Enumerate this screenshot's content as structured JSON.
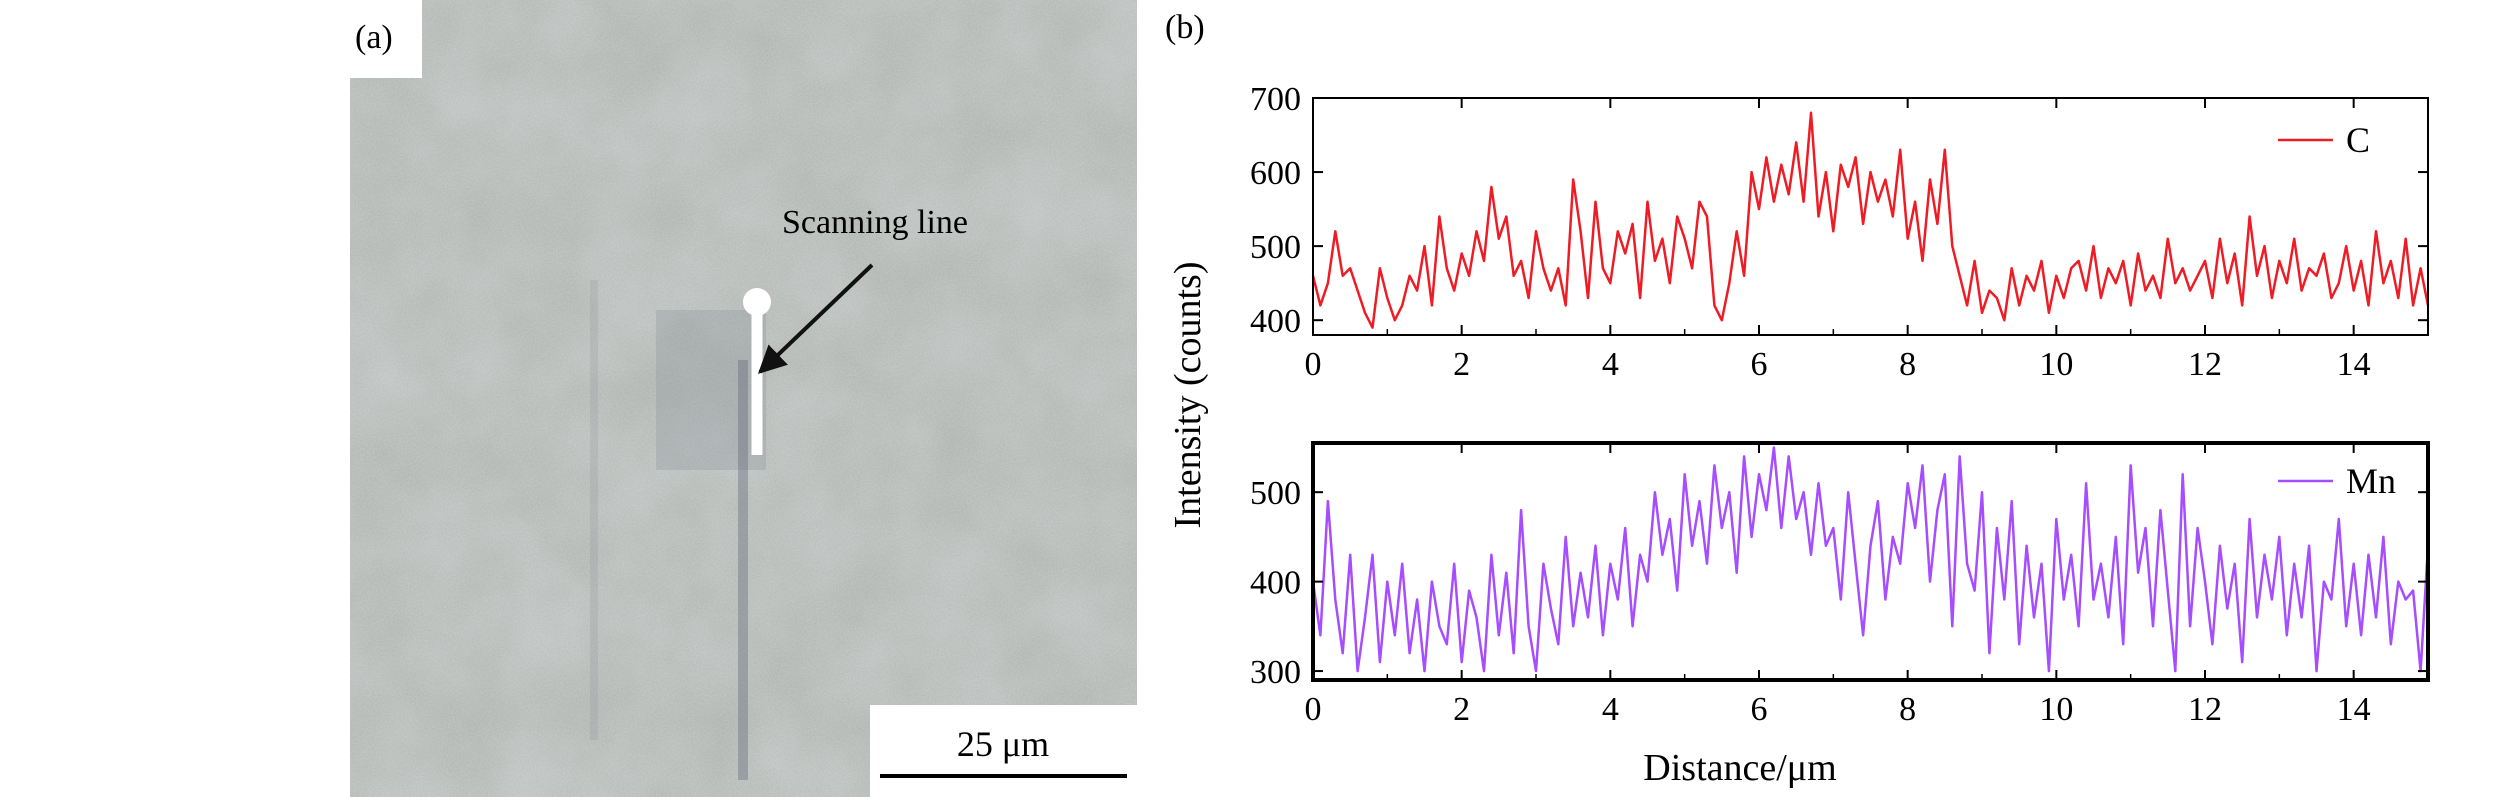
{
  "panel_a": {
    "label": "(a)",
    "annotation": "Scanning line",
    "scale_bar": "25 μm",
    "colors": {
      "background": "#a9aeaa",
      "scan_line": "#ffffff",
      "arrow": "#111111"
    }
  },
  "panel_b": {
    "label": "(b)"
  },
  "chart_data": [
    {
      "type": "line",
      "title": "",
      "xlabel": "",
      "ylabel": "Intensity (counts)",
      "xlim": [
        0,
        15
      ],
      "ylim": [
        380,
        700
      ],
      "x_ticks": [
        0,
        2,
        4,
        6,
        8,
        10,
        12,
        14
      ],
      "y_ticks": [
        400,
        500,
        600,
        700
      ],
      "grid": false,
      "legend_position": "top-right",
      "series": [
        {
          "name": "C",
          "color": "#ee1c25",
          "x": [
            0,
            0.1,
            0.2,
            0.3,
            0.4,
            0.5,
            0.6,
            0.7,
            0.8,
            0.9,
            1.0,
            1.1,
            1.2,
            1.3,
            1.4,
            1.5,
            1.6,
            1.7,
            1.8,
            1.9,
            2.0,
            2.1,
            2.2,
            2.3,
            2.4,
            2.5,
            2.6,
            2.7,
            2.8,
            2.9,
            3.0,
            3.1,
            3.2,
            3.3,
            3.4,
            3.5,
            3.6,
            3.7,
            3.8,
            3.9,
            4.0,
            4.1,
            4.2,
            4.3,
            4.4,
            4.5,
            4.6,
            4.7,
            4.8,
            4.9,
            5.0,
            5.1,
            5.2,
            5.3,
            5.4,
            5.5,
            5.6,
            5.7,
            5.8,
            5.9,
            6.0,
            6.1,
            6.2,
            6.3,
            6.4,
            6.5,
            6.6,
            6.7,
            6.8,
            6.9,
            7.0,
            7.1,
            7.2,
            7.3,
            7.4,
            7.5,
            7.6,
            7.7,
            7.8,
            7.9,
            8.0,
            8.1,
            8.2,
            8.3,
            8.4,
            8.5,
            8.6,
            8.7,
            8.8,
            8.9,
            9.0,
            9.1,
            9.2,
            9.3,
            9.4,
            9.5,
            9.6,
            9.7,
            9.8,
            9.9,
            10.0,
            10.1,
            10.2,
            10.3,
            10.4,
            10.5,
            10.6,
            10.7,
            10.8,
            10.9,
            11.0,
            11.1,
            11.2,
            11.3,
            11.4,
            11.5,
            11.6,
            11.7,
            11.8,
            11.9,
            12.0,
            12.1,
            12.2,
            12.3,
            12.4,
            12.5,
            12.6,
            12.7,
            12.8,
            12.9,
            13.0,
            13.1,
            13.2,
            13.3,
            13.4,
            13.5,
            13.6,
            13.7,
            13.8,
            13.9,
            14.0,
            14.1,
            14.2,
            14.3,
            14.4,
            14.5,
            14.6,
            14.7,
            14.8,
            14.9,
            15.0
          ],
          "values": [
            460,
            420,
            450,
            520,
            460,
            470,
            440,
            410,
            390,
            470,
            430,
            400,
            420,
            460,
            440,
            500,
            420,
            540,
            470,
            440,
            490,
            460,
            520,
            480,
            580,
            510,
            540,
            460,
            480,
            430,
            520,
            470,
            440,
            470,
            420,
            590,
            520,
            430,
            560,
            470,
            450,
            520,
            490,
            530,
            430,
            560,
            480,
            510,
            450,
            540,
            510,
            470,
            560,
            540,
            420,
            400,
            450,
            520,
            460,
            600,
            550,
            620,
            560,
            610,
            570,
            640,
            560,
            680,
            540,
            600,
            520,
            610,
            580,
            620,
            530,
            600,
            560,
            590,
            540,
            630,
            510,
            560,
            480,
            590,
            530,
            630,
            500,
            460,
            420,
            480,
            410,
            440,
            430,
            400,
            470,
            420,
            460,
            440,
            480,
            410,
            460,
            430,
            470,
            480,
            440,
            500,
            430,
            470,
            450,
            480,
            420,
            490,
            440,
            460,
            430,
            510,
            450,
            470,
            440,
            460,
            480,
            430,
            510,
            450,
            490,
            420,
            540,
            460,
            500,
            430,
            480,
            450,
            510,
            440,
            470,
            460,
            490,
            430,
            450,
            500,
            440,
            480,
            420,
            520,
            450,
            480,
            430,
            510,
            420,
            470,
            420
          ]
        }
      ]
    },
    {
      "type": "line",
      "title": "",
      "xlabel": "Distance/μm",
      "ylabel": "",
      "xlim": [
        0,
        15
      ],
      "ylim": [
        290,
        555
      ],
      "x_ticks": [
        0,
        2,
        4,
        6,
        8,
        10,
        12,
        14
      ],
      "y_ticks": [
        300,
        400,
        500
      ],
      "grid": false,
      "legend_position": "top-right",
      "series": [
        {
          "name": "Mn",
          "color": "#a64dff",
          "x": [
            0,
            0.1,
            0.2,
            0.3,
            0.4,
            0.5,
            0.6,
            0.7,
            0.8,
            0.9,
            1.0,
            1.1,
            1.2,
            1.3,
            1.4,
            1.5,
            1.6,
            1.7,
            1.8,
            1.9,
            2.0,
            2.1,
            2.2,
            2.3,
            2.4,
            2.5,
            2.6,
            2.7,
            2.8,
            2.9,
            3.0,
            3.1,
            3.2,
            3.3,
            3.4,
            3.5,
            3.6,
            3.7,
            3.8,
            3.9,
            4.0,
            4.1,
            4.2,
            4.3,
            4.4,
            4.5,
            4.6,
            4.7,
            4.8,
            4.9,
            5.0,
            5.1,
            5.2,
            5.3,
            5.4,
            5.5,
            5.6,
            5.7,
            5.8,
            5.9,
            6.0,
            6.1,
            6.2,
            6.3,
            6.4,
            6.5,
            6.6,
            6.7,
            6.8,
            6.9,
            7.0,
            7.1,
            7.2,
            7.3,
            7.4,
            7.5,
            7.6,
            7.7,
            7.8,
            7.9,
            8.0,
            8.1,
            8.2,
            8.3,
            8.4,
            8.5,
            8.6,
            8.7,
            8.8,
            8.9,
            9.0,
            9.1,
            9.2,
            9.3,
            9.4,
            9.5,
            9.6,
            9.7,
            9.8,
            9.9,
            10.0,
            10.1,
            10.2,
            10.3,
            10.4,
            10.5,
            10.6,
            10.7,
            10.8,
            10.9,
            11.0,
            11.1,
            11.2,
            11.3,
            11.4,
            11.5,
            11.6,
            11.7,
            11.8,
            11.9,
            12.0,
            12.1,
            12.2,
            12.3,
            12.4,
            12.5,
            12.6,
            12.7,
            12.8,
            12.9,
            13.0,
            13.1,
            13.2,
            13.3,
            13.4,
            13.5,
            13.6,
            13.7,
            13.8,
            13.9,
            14.0,
            14.1,
            14.2,
            14.3,
            14.4,
            14.5,
            14.6,
            14.7,
            14.8,
            14.9,
            15.0
          ],
          "values": [
            400,
            340,
            490,
            380,
            320,
            430,
            300,
            360,
            430,
            310,
            400,
            340,
            420,
            320,
            380,
            300,
            400,
            350,
            330,
            420,
            310,
            390,
            360,
            300,
            430,
            340,
            410,
            320,
            480,
            350,
            300,
            420,
            370,
            330,
            450,
            350,
            410,
            360,
            440,
            340,
            420,
            380,
            460,
            350,
            430,
            400,
            500,
            430,
            470,
            390,
            520,
            440,
            490,
            420,
            530,
            460,
            500,
            410,
            540,
            450,
            520,
            480,
            550,
            460,
            540,
            470,
            500,
            430,
            510,
            440,
            460,
            380,
            500,
            420,
            340,
            440,
            490,
            380,
            450,
            420,
            510,
            460,
            530,
            400,
            480,
            520,
            350,
            540,
            420,
            390,
            500,
            320,
            460,
            380,
            490,
            330,
            440,
            360,
            420,
            300,
            470,
            380,
            430,
            350,
            510,
            380,
            420,
            360,
            450,
            330,
            530,
            410,
            460,
            350,
            480,
            390,
            300,
            520,
            350,
            460,
            400,
            330,
            440,
            370,
            420,
            310,
            470,
            360,
            430,
            380,
            450,
            340,
            420,
            360,
            440,
            300,
            400,
            380,
            470,
            350,
            420,
            340,
            430,
            360,
            450,
            330,
            400,
            380,
            390,
            300,
            440
          ]
        }
      ]
    }
  ]
}
